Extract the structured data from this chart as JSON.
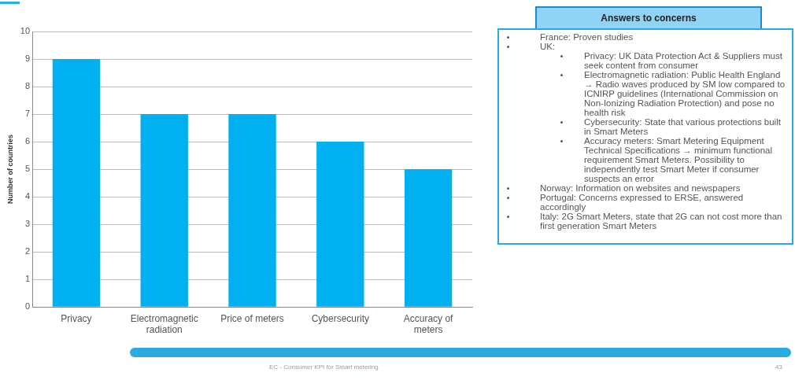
{
  "chart_data": [
    {
      "type": "bar",
      "ylabel": "Number of countries",
      "categories": [
        "Privacy",
        "Electromagnetic radiation",
        "Price of meters",
        "Cybersecurity",
        "Accuracy of meters"
      ],
      "values": [
        9,
        7,
        7,
        6,
        5
      ],
      "color": "#00b0f0",
      "ylim": [
        0,
        10
      ],
      "yticks": [
        0,
        1,
        2,
        3,
        4,
        5,
        6,
        7,
        8,
        9,
        10
      ],
      "grid": "y",
      "legend": false,
      "annotations": [
        "EC - Consumer KPI for Smart metering",
        "43"
      ]
    },
    {
      "type": "other",
      "title": "Answers to concerns",
      "annotations": [
        "France: Proven studies",
        "UK:",
        "Privacy: UK Data Protection Act & Suppliers must seek content from consumer",
        "Electromagnetic radiation: Public Health England → Radio waves produced by SM low compared to ICNIRP guidelines (International Commission on Non-Ionizing Radiation Protection) and pose no health risk",
        "Cybersecurity: State that various protections built in Smart Meters",
        "Accuracy meters: Smart Metering Equipment Technical Specifications → minimum functional requirement Smart Meters. Possibility to independently test Smart Meter if consumer suspects an error",
        "Norway: Information on websites and newspapers",
        "Portugal: Concerns expressed to ERSE, answered accordingly",
        "Italy: 2G Smart Meters, state that 2G can not cost more than first generation Smart Meters"
      ]
    }
  ]
}
